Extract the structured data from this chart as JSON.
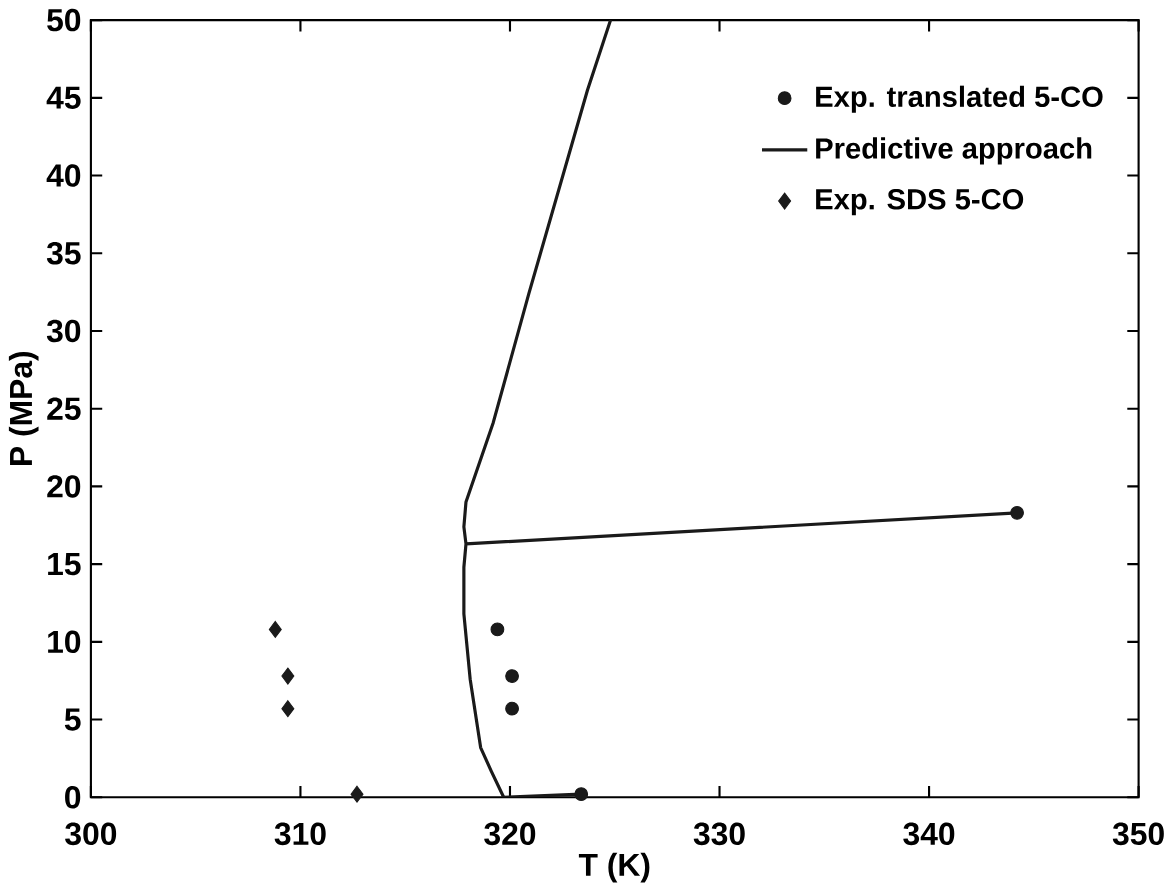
{
  "chart_data": {
    "type": "scatter",
    "xlabel": "T (K)",
    "ylabel": "P (MPa)",
    "xlim": [
      300,
      350
    ],
    "ylim": [
      0,
      50
    ],
    "xticks": [
      300,
      310,
      320,
      330,
      340,
      350
    ],
    "yticks": [
      0,
      5,
      10,
      15,
      20,
      25,
      30,
      35,
      40,
      45,
      50
    ],
    "grid": false,
    "legend": "top right",
    "series": [
      {
        "name": "Exp. translated 5-CO",
        "marker": "circle",
        "color": "#1a1a1a",
        "x": [
          319.4,
          320.1,
          320.1,
          323.4,
          344.2
        ],
        "values": [
          10.8,
          7.8,
          5.7,
          0.2,
          18.3
        ]
      },
      {
        "name": "Predictive approach",
        "type": "line",
        "marker": "none",
        "line_style": "solid",
        "color": "#1a1a1a",
        "x": [
          324.8,
          323.7,
          320.9,
          319.2,
          317.9,
          317.8,
          317.9,
          344.2,
          null,
          317.9,
          317.8,
          317.8,
          318.1,
          318.6,
          319.1,
          319.7,
          323.4
        ],
        "values": [
          50,
          45.5,
          32.4,
          24.1,
          19.0,
          17.4,
          16.3,
          18.3,
          null,
          16.3,
          14.8,
          11.8,
          7.6,
          3.2,
          1.7,
          0,
          0.2
        ]
      },
      {
        "name": "Exp. SDS 5-CO",
        "marker": "diamond",
        "color": "#1a1a1a",
        "x": [
          308.8,
          309.4,
          309.4,
          312.7
        ],
        "values": [
          10.8,
          7.8,
          5.7,
          0.2
        ]
      }
    ]
  }
}
